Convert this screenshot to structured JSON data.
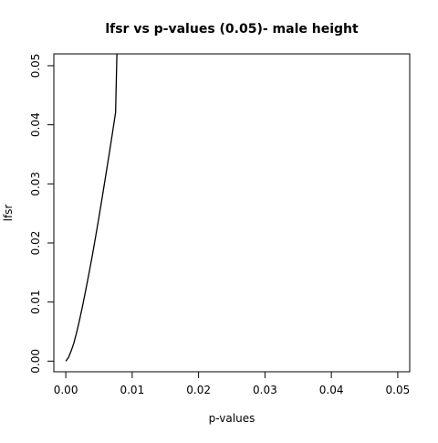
{
  "chart_data": {
    "type": "line",
    "title": "lfsr vs p-values (0.05)- male height",
    "xlabel": "p-values",
    "ylabel": "lfsr",
    "xlim": [
      -0.0018,
      0.0518
    ],
    "ylim": [
      -0.0018,
      0.052
    ],
    "x_ticks": [
      0.0,
      0.01,
      0.02,
      0.03,
      0.04,
      0.05
    ],
    "x_tick_labels": [
      "0.00",
      "0.01",
      "0.02",
      "0.03",
      "0.04",
      "0.05"
    ],
    "y_ticks": [
      0.0,
      0.01,
      0.02,
      0.03,
      0.04,
      0.05
    ],
    "y_tick_labels": [
      "0.00",
      "0.01",
      "0.02",
      "0.03",
      "0.04",
      "0.05"
    ],
    "grid": false,
    "line_color": "#000000",
    "series": [
      {
        "x": [
          0.0,
          0.0004,
          0.0008,
          0.0012,
          0.0016,
          0.002,
          0.0025,
          0.003,
          0.0035,
          0.004,
          0.0045,
          0.005,
          0.0055,
          0.006,
          0.0065,
          0.007,
          0.0075,
          0.0077
        ],
        "y": [
          0.0,
          0.0006,
          0.0017,
          0.003,
          0.0047,
          0.0066,
          0.0092,
          0.012,
          0.0149,
          0.0179,
          0.0211,
          0.0244,
          0.0278,
          0.0313,
          0.0348,
          0.0384,
          0.0421,
          0.052
        ]
      }
    ]
  }
}
